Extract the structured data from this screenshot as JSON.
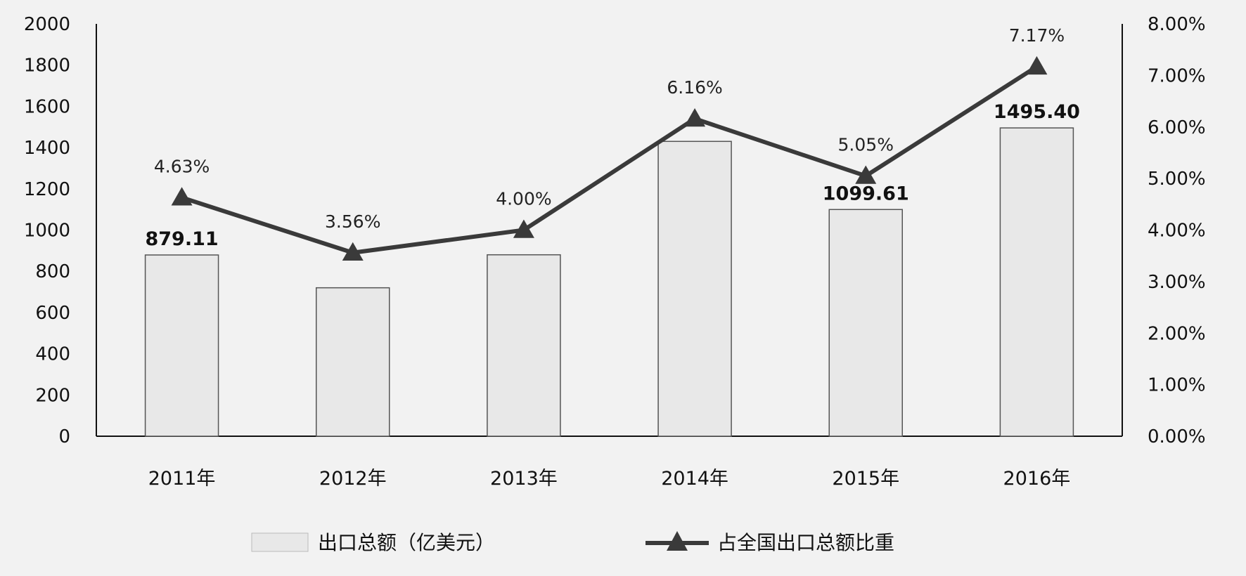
{
  "chart_data": {
    "type": "bar",
    "categories": [
      "2011年",
      "2012年",
      "2013年",
      "2014年",
      "2015年",
      "2016年"
    ],
    "series": [
      {
        "name": "出口总额（亿美元）",
        "kind": "bar",
        "axis": "left",
        "values": [
          879.11,
          720,
          880,
          1430,
          1099.61,
          1495.4
        ],
        "value_labels": [
          "879.11",
          "",
          "",
          "",
          "1099.61",
          "1495.40"
        ],
        "color": "#e8e8e8"
      },
      {
        "name": "占全国出口总额比重",
        "kind": "line",
        "axis": "right",
        "marker": "triangle",
        "values": [
          4.63,
          3.56,
          4.0,
          6.16,
          5.05,
          7.17
        ],
        "value_labels": [
          "4.63%",
          "3.56%",
          "4.00%",
          "6.16%",
          "5.05%",
          "7.17%"
        ],
        "color": "#3a3a3a"
      }
    ],
    "y_left": {
      "min": 0,
      "max": 2000,
      "ticks": [
        "0",
        "200",
        "400",
        "600",
        "800",
        "1000",
        "1200",
        "1400",
        "1600",
        "1800",
        "2000"
      ]
    },
    "y_right": {
      "min": 0,
      "max": 8,
      "ticks": [
        "0.00%",
        "1.00%",
        "2.00%",
        "3.00%",
        "4.00%",
        "5.00%",
        "6.00%",
        "7.00%",
        "8.00%"
      ]
    },
    "grid": false,
    "legend": "bottom",
    "background_color": "#f2f2f2",
    "axis_color": "#111111"
  }
}
